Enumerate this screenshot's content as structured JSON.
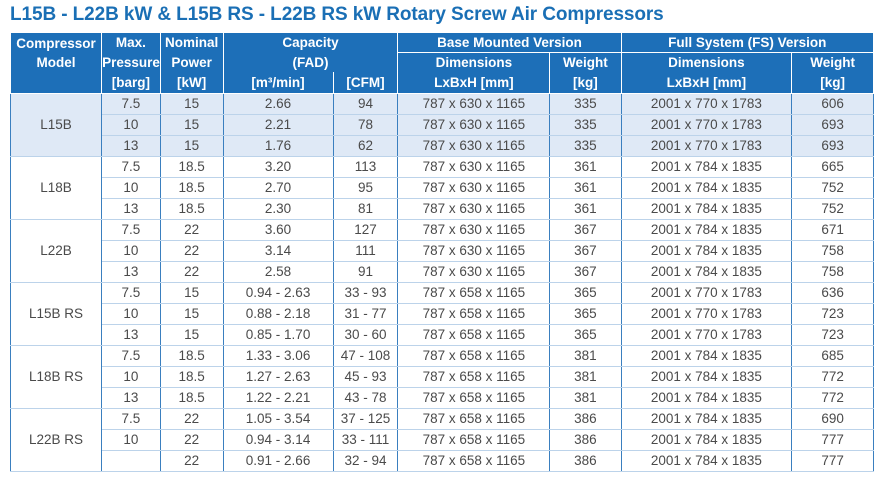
{
  "title": "L15B - L22B kW & L15B RS - L22B RS kW Rotary Screw Air Compressors",
  "header": {
    "model_l1": "Compressor",
    "model_l2": "Model",
    "pressure_l1": "Max.",
    "pressure_l2": "Pressure",
    "pressure_unit": "[barg]",
    "power_l1": "Nominal",
    "power_l2": "Power",
    "power_unit": "[kW]",
    "capacity_l1": "Capacity",
    "capacity_l2": "(FAD)",
    "capacity_unit_m3": "[m³/min]",
    "capacity_unit_cfm": "[CFM]",
    "base_title": "Base Mounted Version",
    "base_dim_label": "Dimensions",
    "base_dim_unit": "LxBxH [mm]",
    "base_weight_label": "Weight",
    "base_weight_unit": "[kg]",
    "fs_title": "Full System (FS) Version",
    "fs_dim_label": "Dimensions",
    "fs_dim_unit": "LxBxH [mm]",
    "fs_weight_label": "Weight",
    "fs_weight_unit": "[kg]"
  },
  "groups": [
    {
      "model": "L15B",
      "shaded": true,
      "rows": [
        [
          "7.5",
          "15",
          "2.66",
          "94",
          "787 x 630 x 1165",
          "335",
          "2001 x 770 x 1783",
          "606"
        ],
        [
          "10",
          "15",
          "2.21",
          "78",
          "787 x 630 x 1165",
          "335",
          "2001 x 770 x 1783",
          "693"
        ],
        [
          "13",
          "15",
          "1.76",
          "62",
          "787 x 630 x 1165",
          "335",
          "2001 x 770 x 1783",
          "693"
        ]
      ]
    },
    {
      "model": "L18B",
      "shaded": false,
      "rows": [
        [
          "7.5",
          "18.5",
          "3.20",
          "113",
          "787 x 630 x 1165",
          "361",
          "2001 x 784 x 1835",
          "665"
        ],
        [
          "10",
          "18.5",
          "2.70",
          "95",
          "787 x 630 x 1165",
          "361",
          "2001 x 784 x 1835",
          "752"
        ],
        [
          "13",
          "18.5",
          "2.30",
          "81",
          "787 x 630 x 1165",
          "361",
          "2001 x 784 x 1835",
          "752"
        ]
      ]
    },
    {
      "model": "L22B",
      "shaded": false,
      "rows": [
        [
          "7.5",
          "22",
          "3.60",
          "127",
          "787 x 630 x 1165",
          "367",
          "2001 x 784 x 1835",
          "671"
        ],
        [
          "10",
          "22",
          "3.14",
          "111",
          "787 x 630 x 1165",
          "367",
          "2001 x 784 x 1835",
          "758"
        ],
        [
          "13",
          "22",
          "2.58",
          "91",
          "787 x 630 x 1165",
          "367",
          "2001 x 784 x 1835",
          "758"
        ]
      ]
    },
    {
      "model": "L15B RS",
      "shaded": false,
      "rows": [
        [
          "7.5",
          "15",
          "0.94 - 2.63",
          "33 - 93",
          "787 x 658 x 1165",
          "365",
          "2001 x 770 x 1783",
          "636"
        ],
        [
          "10",
          "15",
          "0.88 - 2.18",
          "31 - 77",
          "787 x 658 x 1165",
          "365",
          "2001 x 770 x 1783",
          "723"
        ],
        [
          "13",
          "15",
          "0.85 - 1.70",
          "30 - 60",
          "787 x 658 x 1165",
          "365",
          "2001 x 770 x 1783",
          "723"
        ]
      ]
    },
    {
      "model": "L18B RS",
      "shaded": false,
      "rows": [
        [
          "7.5",
          "18.5",
          "1.33 - 3.06",
          "47 - 108",
          "787 x 658 x 1165",
          "381",
          "2001 x 784 x 1835",
          "685"
        ],
        [
          "10",
          "18.5",
          "1.27 - 2.63",
          "45 - 93",
          "787 x 658 x 1165",
          "381",
          "2001 x 784 x 1835",
          "772"
        ],
        [
          "13",
          "18.5",
          "1.22 - 2.21",
          "43 - 78",
          "787 x 658 x 1165",
          "381",
          "2001 x 784 x 1835",
          "772"
        ]
      ]
    },
    {
      "model": "L22B RS",
      "shaded": false,
      "rows": [
        [
          "7.5",
          "22",
          "1.05 - 3.54",
          "37 - 125",
          "787 x 658 x 1165",
          "386",
          "2001 x 784 x 1835",
          "690"
        ],
        [
          "10",
          "22",
          "0.94 - 3.14",
          "33 - 111",
          "787 x 658 x 1165",
          "386",
          "2001 x 784 x 1835",
          "777"
        ],
        [
          "",
          "22",
          "0.91 - 2.66",
          "32 - 94",
          "787 x 658 x 1165",
          "386",
          "2001 x 784 x 1835",
          "777"
        ]
      ]
    }
  ],
  "colors": {
    "header_blue": "#1d6fb8",
    "title_blue": "#1a6fb5",
    "shade": "#dfe9f6",
    "rule": "#3a7fbf"
  }
}
